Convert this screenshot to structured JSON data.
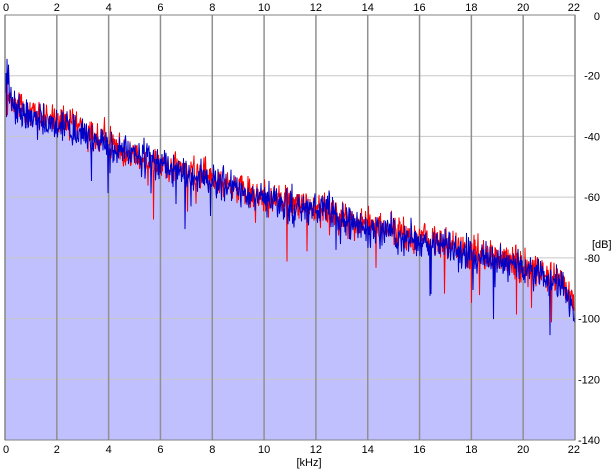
{
  "chart_data": {
    "type": "area",
    "xlabel": "[kHz]",
    "ylabel": "[dB]",
    "xlim": [
      0,
      22
    ],
    "ylim": [
      -140,
      0
    ],
    "x_ticks": [
      0,
      2,
      4,
      6,
      8,
      10,
      12,
      14,
      16,
      18,
      20,
      22
    ],
    "x_tick_labels": [
      "0",
      "2",
      "4",
      "6",
      "8",
      "10",
      "12",
      "14",
      "16",
      "18",
      "20",
      "22"
    ],
    "y_ticks": [
      0,
      -20,
      -40,
      -60,
      -80,
      -100,
      -120,
      -140
    ],
    "y_tick_labels": [
      "0",
      "-20",
      "-40",
      "-60",
      "-80",
      "-100",
      "-120",
      "-140"
    ],
    "grid": true,
    "x_axis_labels_top_and_bottom": true,
    "y_axis_labels_side": "right",
    "background_color": "#ffffff",
    "fill_color": "#c0c0ff",
    "grid_color": "#c8c8c8",
    "major_grid_color": "#909090",
    "series": [
      {
        "color": "#ff0000",
        "x": [
          0.0,
          0.1,
          0.2,
          0.3,
          0.5,
          0.8,
          1.0,
          1.5,
          2.0,
          2.5,
          3.0,
          3.5,
          4.0,
          4.5,
          5.0,
          5.5,
          6.0,
          6.5,
          7.0,
          7.5,
          8.0,
          8.5,
          9.0,
          9.5,
          10.0,
          10.5,
          11.0,
          11.5,
          12.0,
          12.5,
          13.0,
          13.5,
          14.0,
          14.5,
          15.0,
          15.5,
          16.0,
          16.5,
          17.0,
          17.5,
          18.0,
          18.5,
          19.0,
          19.5,
          20.0,
          20.5,
          21.0,
          21.5,
          22.0
        ],
        "y": [
          -24,
          -22,
          -29,
          -30,
          -31,
          -31,
          -33,
          -34,
          -35,
          -36,
          -38,
          -41,
          -42,
          -44,
          -45,
          -47,
          -49,
          -50,
          -51,
          -52,
          -54,
          -55,
          -57,
          -59,
          -60,
          -61,
          -62,
          -63,
          -63,
          -64,
          -66,
          -68,
          -69,
          -70,
          -71,
          -73,
          -73,
          -74,
          -75,
          -77,
          -78,
          -79,
          -80,
          -81,
          -83,
          -84,
          -86,
          -88,
          -96
        ]
      },
      {
        "color": "#0000c8",
        "x": [
          0.0,
          0.1,
          0.2,
          0.3,
          0.5,
          0.8,
          1.0,
          1.5,
          2.0,
          2.5,
          3.0,
          3.5,
          4.0,
          4.5,
          5.0,
          5.5,
          6.0,
          6.5,
          7.0,
          7.5,
          8.0,
          8.5,
          9.0,
          9.5,
          10.0,
          10.5,
          11.0,
          11.5,
          12.0,
          12.5,
          13.0,
          13.5,
          14.0,
          14.5,
          15.0,
          15.5,
          16.0,
          16.5,
          17.0,
          17.5,
          18.0,
          18.5,
          19.0,
          19.5,
          20.0,
          20.5,
          21.0,
          21.5,
          22.0
        ],
        "y": [
          -23,
          -18,
          -27,
          -31,
          -32,
          -32,
          -34,
          -35,
          -36,
          -37,
          -39,
          -42,
          -43,
          -45,
          -46,
          -48,
          -50,
          -51,
          -52,
          -53,
          -55,
          -56,
          -58,
          -60,
          -61,
          -62,
          -63,
          -64,
          -64,
          -65,
          -67,
          -69,
          -70,
          -71,
          -72,
          -74,
          -74,
          -75,
          -76,
          -78,
          -79,
          -80,
          -81,
          -82,
          -84,
          -85,
          -87,
          -89,
          -98
        ]
      }
    ]
  }
}
